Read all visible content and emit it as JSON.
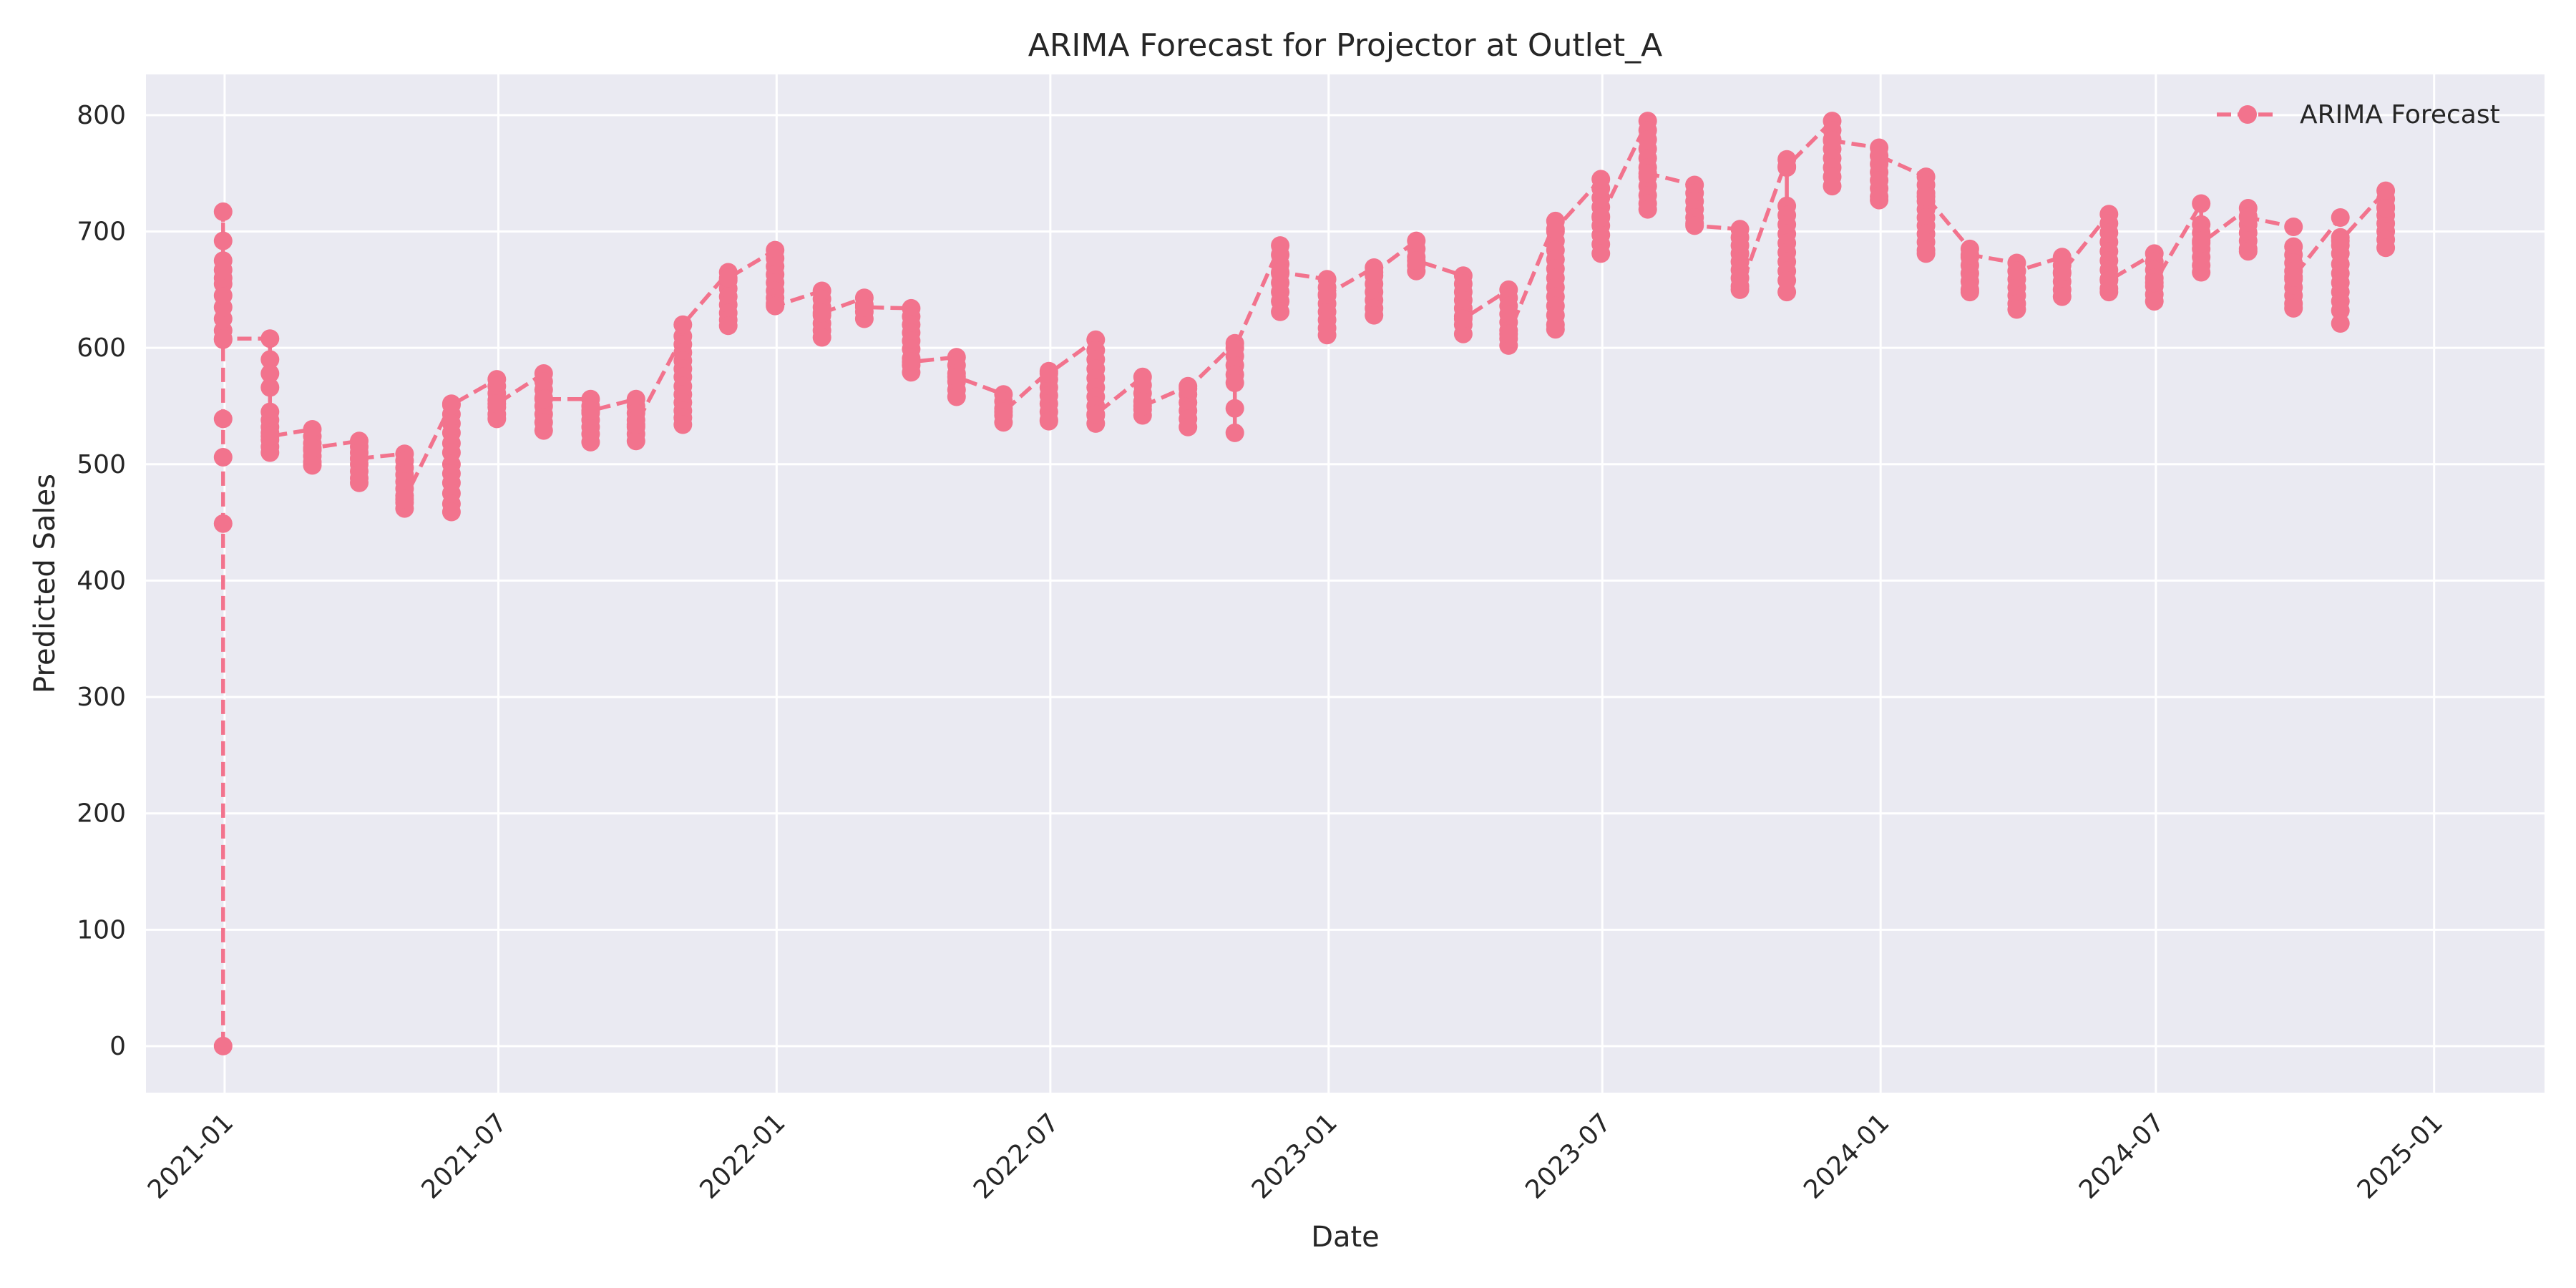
{
  "chart_data": {
    "type": "line",
    "title": "ARIMA Forecast for Projector at Outlet_A",
    "xlabel": "Date",
    "ylabel": "Predicted Sales",
    "xlim": [
      "2020-11-10",
      "2025-03-15"
    ],
    "ylim": [
      -40,
      835
    ],
    "grid": true,
    "legend_position": "top-right",
    "x_ticks": [
      "2021-01",
      "2021-07",
      "2022-01",
      "2022-07",
      "2023-01",
      "2023-07",
      "2024-01",
      "2024-07",
      "2025-01"
    ],
    "y_ticks": [
      0,
      100,
      200,
      300,
      400,
      500,
      600,
      700,
      800
    ],
    "series": [
      {
        "name": "ARIMA Forecast",
        "color": "#f2738d",
        "line_style": "dashed",
        "marker": "circle",
        "points": [
          {
            "date": "2020-12-31",
            "values": [
              0,
              449,
              506,
              539,
              607,
              615,
              625,
              635,
              645,
              655,
              660,
              667,
              675,
              692,
              717,
              608
            ]
          },
          {
            "date": "2021-01-31",
            "values": [
              608,
              590,
              578,
              566,
              545,
              538,
              532,
              527,
              521,
              515,
              510,
              524
            ]
          },
          {
            "date": "2021-02-28",
            "values": [
              530,
              524,
              518,
              512,
              507,
              502,
              499,
              514
            ]
          },
          {
            "date": "2021-03-31",
            "values": [
              520,
              515,
              510,
              505,
              500,
              494,
              488,
              484,
              505
            ]
          },
          {
            "date": "2021-04-30",
            "values": [
              509,
              503,
              497,
              491,
              485,
              479,
              473,
              467,
              462,
              470
            ]
          },
          {
            "date": "2021-05-31",
            "values": [
              552,
              543,
              535,
              527,
              518,
              510,
              500,
              492,
              484,
              475,
              466,
              459,
              551
            ]
          },
          {
            "date": "2021-06-30",
            "values": [
              573,
              567,
              561,
              555,
              549,
              543,
              539,
              552
            ]
          },
          {
            "date": "2021-07-31",
            "values": [
              578,
              571,
              564,
              557,
              550,
              543,
              536,
              529,
              556
            ]
          },
          {
            "date": "2021-08-31",
            "values": [
              556,
              550,
              544,
              538,
              532,
              526,
              519,
              546
            ]
          },
          {
            "date": "2021-09-30",
            "values": [
              556,
              550,
              544,
              538,
              532,
              526,
              520,
              534
            ]
          },
          {
            "date": "2021-10-31",
            "values": [
              610,
              603,
              596,
              589,
              582,
              575,
              567,
              560,
              553,
              546,
              540,
              534,
              620
            ]
          },
          {
            "date": "2021-11-30",
            "values": [
              665,
              658,
              651,
              644,
              637,
              630,
              624,
              619,
              660
            ]
          },
          {
            "date": "2021-12-31",
            "values": [
              684,
              677,
              670,
              663,
              656,
              649,
              643,
              638,
              636
            ]
          },
          {
            "date": "2022-01-31",
            "values": [
              649,
              642,
              635,
              628,
              621,
              615,
              609,
              630
            ]
          },
          {
            "date": "2022-02-28",
            "values": [
              643,
              637,
              631,
              625,
              635
            ]
          },
          {
            "date": "2022-03-31",
            "values": [
              634,
              627,
              620,
              613,
              606,
              599,
              591,
              585,
              579,
              588
            ]
          },
          {
            "date": "2022-04-30",
            "values": [
              592,
              585,
              578,
              571,
              564,
              558,
              575
            ]
          },
          {
            "date": "2022-05-31",
            "values": [
              560,
              554,
              548,
              542,
              536,
              545
            ]
          },
          {
            "date": "2022-06-30",
            "values": [
              580,
              573,
              566,
              559,
              552,
              545,
              538,
              537,
              578
            ]
          },
          {
            "date": "2022-07-31",
            "values": [
              607,
              598,
              590,
              582,
              574,
              566,
              558,
              550,
              542,
              535,
              543
            ]
          },
          {
            "date": "2022-08-31",
            "values": [
              575,
              568,
              561,
              554,
              547,
              542,
              550
            ]
          },
          {
            "date": "2022-09-30",
            "values": [
              567,
              560,
              553,
              546,
              539,
              532,
              565
            ]
          },
          {
            "date": "2022-10-31",
            "values": [
              604,
              593,
              585,
              577,
              570,
              548,
              527,
              600
            ]
          },
          {
            "date": "2022-11-30",
            "values": [
              688,
              680,
              672,
              664,
              656,
              648,
              640,
              631,
              665
            ]
          },
          {
            "date": "2022-12-31",
            "values": [
              659,
              652,
              645,
              638,
              631,
              624,
              617,
              611,
              646
            ]
          },
          {
            "date": "2023-01-31",
            "values": [
              669,
              662,
              655,
              648,
              641,
              634,
              628,
              665
            ]
          },
          {
            "date": "2023-02-28",
            "values": [
              692,
              685,
              678,
              671,
              666,
              675
            ]
          },
          {
            "date": "2023-03-31",
            "values": [
              662,
              655,
              648,
              641,
              634,
              627,
              620,
              612,
              625
            ]
          },
          {
            "date": "2023-04-30",
            "values": [
              650,
              643,
              636,
              629,
              622,
              615,
              608,
              602,
              612
            ]
          },
          {
            "date": "2023-05-31",
            "values": [
              709,
              700,
              692,
              684,
              676,
              668,
              660,
              652,
              644,
              636,
              628,
              620,
              616,
              702
            ]
          },
          {
            "date": "2023-06-30",
            "values": [
              745,
              737,
              729,
              721,
              713,
              705,
              697,
              689,
              681,
              712
            ]
          },
          {
            "date": "2023-07-31",
            "values": [
              795,
              787,
              779,
              771,
              763,
              755,
              747,
              739,
              731,
              724,
              719,
              750
            ]
          },
          {
            "date": "2023-08-31",
            "values": [
              740,
              733,
              726,
              719,
              712,
              707,
              705
            ]
          },
          {
            "date": "2023-09-30",
            "values": [
              702,
              695,
              688,
              681,
              674,
              667,
              660,
              653,
              650
            ]
          },
          {
            "date": "2023-10-31",
            "values": [
              762,
              755,
              722,
              714,
              706,
              698,
              690,
              682,
              674,
              666,
              658,
              648,
              756
            ]
          },
          {
            "date": "2023-11-30",
            "values": [
              795,
              787,
              779,
              771,
              763,
              755,
              747,
              739,
              778
            ]
          },
          {
            "date": "2023-12-31",
            "values": [
              772,
              765,
              758,
              751,
              744,
              737,
              730,
              727,
              765
            ]
          },
          {
            "date": "2024-01-31",
            "values": [
              747,
              740,
              733,
              726,
              719,
              712,
              705,
              698,
              691,
              684,
              681,
              730
            ]
          },
          {
            "date": "2024-02-29",
            "values": [
              685,
              678,
              671,
              664,
              657,
              650,
              648,
              680
            ]
          },
          {
            "date": "2024-03-31",
            "values": [
              673,
              666,
              659,
              652,
              645,
              638,
              633,
              666
            ]
          },
          {
            "date": "2024-04-30",
            "values": [
              678,
              671,
              664,
              657,
              650,
              644,
              665
            ]
          },
          {
            "date": "2024-05-31",
            "values": [
              715,
              707,
              699,
              691,
              683,
              675,
              667,
              659,
              651,
              648,
              658
            ]
          },
          {
            "date": "2024-06-30",
            "values": [
              681,
              674,
              667,
              660,
              653,
              646,
              640,
              656
            ]
          },
          {
            "date": "2024-07-31",
            "values": [
              724,
              706,
              699,
              692,
              685,
              678,
              671,
              665,
              690
            ]
          },
          {
            "date": "2024-08-31",
            "values": [
              720,
              713,
              706,
              699,
              692,
              685,
              683,
              712
            ]
          },
          {
            "date": "2024-09-30",
            "values": [
              704,
              687,
              680,
              673,
              666,
              659,
              652,
              645,
              638,
              634,
              661
            ]
          },
          {
            "date": "2024-10-31",
            "values": [
              712,
              695,
              688,
              681,
              672,
              664,
              656,
              648,
              640,
              632,
              621,
              692
            ]
          },
          {
            "date": "2024-11-30",
            "values": [
              735,
              728,
              721,
              714,
              707,
              700,
              693,
              686,
              720
            ]
          }
        ]
      }
    ]
  }
}
